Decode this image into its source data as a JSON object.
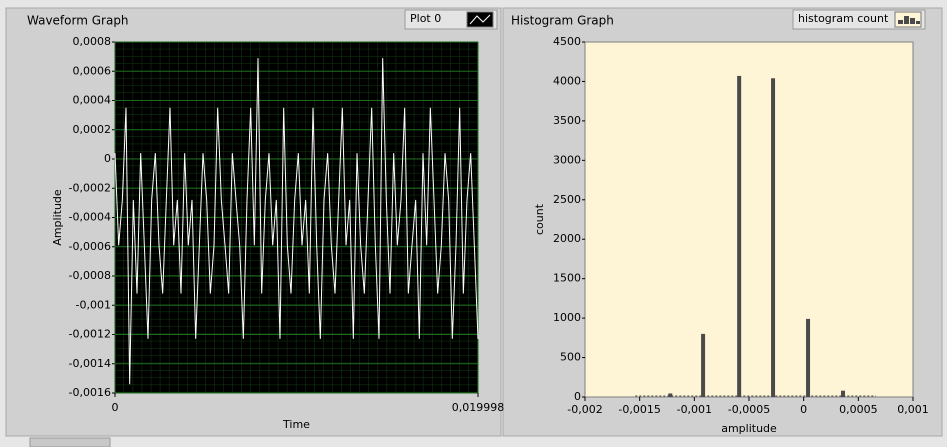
{
  "chart_data": [
    {
      "type": "line",
      "title": "Waveform Graph",
      "x_label": "Time",
      "y_label": "Amplitude",
      "x": [
        0,
        0.000202,
        0.000404,
        0.000606,
        0.000808,
        0.00101,
        0.001212,
        0.001414,
        0.001616,
        0.001818,
        0.00202,
        0.002222,
        0.002424,
        0.002626,
        0.002828,
        0.00303,
        0.003232,
        0.003434,
        0.003636,
        0.003838,
        0.00404,
        0.004242,
        0.004444,
        0.004646,
        0.004848,
        0.00505,
        0.005252,
        0.005454,
        0.005656,
        0.005858,
        0.00606,
        0.006262,
        0.006464,
        0.006666,
        0.006868,
        0.00707,
        0.007272,
        0.007474,
        0.007676,
        0.007878,
        0.00808,
        0.008282,
        0.008484,
        0.008686,
        0.008888,
        0.00909,
        0.009292,
        0.009494,
        0.009696,
        0.009898,
        0.0101,
        0.010302,
        0.010504,
        0.010706,
        0.010908,
        0.01111,
        0.011312,
        0.011514,
        0.011716,
        0.011918,
        0.01212,
        0.012322,
        0.012524,
        0.012726,
        0.012928,
        0.01313,
        0.013332,
        0.013534,
        0.013736,
        0.013938,
        0.01414,
        0.014342,
        0.014544,
        0.014746,
        0.014948,
        0.01515,
        0.015352,
        0.015554,
        0.015756,
        0.015958,
        0.01616,
        0.016362,
        0.016564,
        0.016766,
        0.016968,
        0.01717,
        0.017372,
        0.017574,
        0.017776,
        0.017978,
        0.01818,
        0.018382,
        0.018584,
        0.018786,
        0.018988,
        0.01919,
        0.019392,
        0.019594,
        0.019796,
        0.019998
      ],
      "series": [
        {
          "name": "Plot 0",
          "color": "#ffffff",
          "values": [
            4e-05,
            -0.00059,
            -0.00028,
            0.00035,
            -0.00154,
            -0.00028,
            -0.00092,
            4e-05,
            -0.00059,
            -0.00123,
            -0.00028,
            4e-05,
            -0.00059,
            -0.00092,
            -0.00028,
            0.00035,
            -0.00059,
            -0.00028,
            -0.00092,
            4e-05,
            -0.00059,
            -0.00028,
            -0.00123,
            -0.00059,
            4e-05,
            -0.00028,
            -0.00092,
            -0.00059,
            0.00035,
            -0.00028,
            -0.00059,
            -0.00092,
            4e-05,
            -0.00028,
            -0.00059,
            -0.00123,
            -0.00028,
            0.00035,
            -0.00059,
            0.00069,
            -0.00092,
            -0.00028,
            4e-05,
            -0.00059,
            -0.00028,
            -0.00123,
            0.00035,
            -0.00059,
            -0.00092,
            -0.00028,
            4e-05,
            -0.00059,
            -0.00028,
            -0.00092,
            0.00035,
            -0.00059,
            -0.00123,
            -0.00028,
            4e-05,
            -0.00059,
            -0.00092,
            -0.00028,
            0.00035,
            -0.00059,
            -0.00028,
            -0.00123,
            4e-05,
            -0.00059,
            -0.00092,
            -0.00028,
            0.00035,
            -0.00059,
            -0.00123,
            0.00069,
            -0.00028,
            -0.00092,
            4e-05,
            -0.00059,
            -0.00028,
            0.00035,
            -0.00092,
            -0.00059,
            -0.00028,
            -0.00123,
            4e-05,
            -0.00059,
            0.00035,
            -0.00028,
            -0.00092,
            -0.00059,
            4e-05,
            -0.00028,
            -0.00123,
            -0.00059,
            0.00035,
            -0.00092,
            -0.00028,
            4e-05,
            -0.00059,
            -0.00123
          ]
        }
      ],
      "xlim": [
        0,
        0.019998
      ],
      "xticks": [
        0,
        {
          "value": 0.019998,
          "label": "0,019998"
        }
      ],
      "ylim": [
        -0.0016,
        0.0008
      ],
      "yticks": [
        {
          "value": 0.0008,
          "label": "0,0008"
        },
        {
          "value": 0.0006,
          "label": "0,0006"
        },
        {
          "value": 0.0004,
          "label": "0,0004"
        },
        {
          "value": 0.0002,
          "label": "0,0002"
        },
        0,
        {
          "value": -0.0002,
          "label": "-0,0002"
        },
        {
          "value": -0.0004,
          "label": "-0,0004"
        },
        {
          "value": -0.0006,
          "label": "-0,0006"
        },
        {
          "value": -0.0008,
          "label": "-0,0008"
        },
        {
          "value": -0.001,
          "label": "-0,001"
        },
        {
          "value": -0.0012,
          "label": "-0,0012"
        },
        {
          "value": -0.0014,
          "label": "-0,0014"
        },
        {
          "value": -0.0016,
          "label": "-0,0016"
        }
      ],
      "grid": true,
      "background": "#000000",
      "grid_color": "#1d6a1d"
    },
    {
      "type": "bar",
      "title": "Histogram Graph",
      "x_label": "amplitude",
      "y_label": "count",
      "x": [
        -0.00154,
        -0.00122,
        -0.00092,
        -0.00059,
        -0.00028,
        4e-05,
        0.00036,
        0.00066
      ],
      "series": [
        {
          "name": "histogram count",
          "color": "#4a4a4a",
          "values": [
            0,
            45,
            800,
            4070,
            4040,
            990,
            80,
            0
          ]
        }
      ],
      "xlim": [
        -0.002,
        0.001
      ],
      "xticks": [
        {
          "value": -0.002,
          "label": "-0,002"
        },
        {
          "value": -0.0015,
          "label": "-0,0015"
        },
        {
          "value": -0.001,
          "label": "-0,001"
        },
        {
          "value": -0.0005,
          "label": "-0,0005"
        },
        0,
        {
          "value": 0.0005,
          "label": "0,0005"
        },
        {
          "value": 0.001,
          "label": "0,001"
        }
      ],
      "ylim": [
        0,
        4500
      ],
      "yticks": [
        0,
        500,
        1000,
        1500,
        2000,
        2500,
        3000,
        3500,
        4000,
        4500
      ],
      "grid": false,
      "background": "#fdf5d6"
    }
  ]
}
